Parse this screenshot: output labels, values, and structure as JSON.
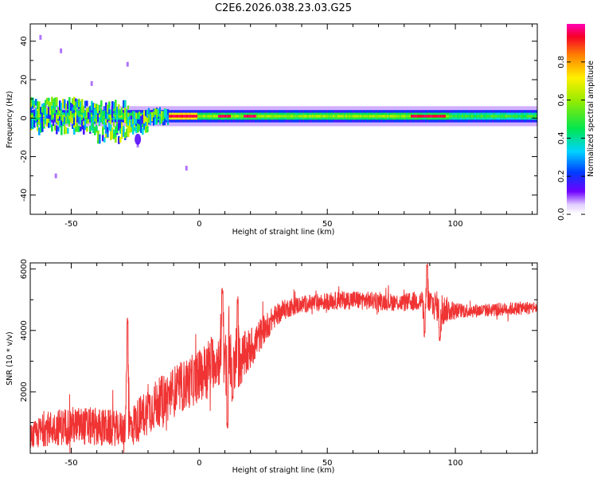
{
  "title": "C2E6.2026.038.23.03.G25",
  "colors": {
    "snr_line": "#f03333",
    "axis": "#000000",
    "background": "#ffffff"
  },
  "chart_data": [
    {
      "type": "heatmap",
      "xlabel": "Height of straight line (km)",
      "ylabel": "Frequency (Hz)",
      "xlim": [
        -66,
        132
      ],
      "ylim": [
        -50,
        49
      ],
      "xticks": [
        -50,
        0,
        50,
        100
      ],
      "yticks": [
        -40,
        -20,
        0,
        20,
        40
      ],
      "colorbar": {
        "label": "Normalized spectral amplitude",
        "range": [
          0,
          1
        ],
        "ticks": [
          "0.0",
          "0.2",
          "0.4",
          "0.6",
          "0.8"
        ],
        "colormap": "rainbow"
      },
      "band_center_hz": 1,
      "band_halfwidth_hz": 2,
      "ridge_segments": [
        {
          "x": [
            -66,
            -28
          ],
          "amplitude": 0.55,
          "freq_spread_hz": 8,
          "note": "noisy scattered energy"
        },
        {
          "x": [
            -28,
            -12
          ],
          "amplitude": 0.5,
          "freq_spread_hz": 3
        },
        {
          "x": [
            -12,
            -1
          ],
          "amplitude": 0.9
        },
        {
          "x": [
            -1,
            97
          ],
          "amplitude": 0.55
        },
        {
          "x": [
            97,
            132
          ],
          "amplitude": 0.45
        }
      ],
      "peak_segments_x": [
        [
          -12,
          -1
        ],
        [
          7,
          12
        ],
        [
          17,
          22
        ],
        [
          82,
          96
        ]
      ],
      "scatter_outliers": [
        {
          "x": -62,
          "f": 42
        },
        {
          "x": -54,
          "f": 35
        },
        {
          "x": -42,
          "f": 18
        },
        {
          "x": -28,
          "f": 28
        },
        {
          "x": -24,
          "f": -14
        },
        {
          "x": -5,
          "f": -26
        },
        {
          "x": -56,
          "f": -30
        }
      ]
    },
    {
      "type": "line",
      "xlabel": "Height of straight line (km)",
      "ylabel": "SNR (10 * v/v)",
      "xlim": [
        -66,
        132
      ],
      "ylim": [
        0,
        6200
      ],
      "xticks": [
        -50,
        0,
        50,
        100
      ],
      "yticks": [
        2000,
        4000,
        6000
      ],
      "series": [
        {
          "name": "SNR",
          "x": [
            -66,
            -60,
            -50,
            -40,
            -30,
            -26,
            -20,
            -10,
            0,
            5,
            10,
            15,
            20,
            25,
            30,
            35,
            40,
            50,
            60,
            70,
            80,
            88,
            90,
            95,
            100,
            110,
            120,
            132
          ],
          "y": [
            500,
            800,
            900,
            850,
            800,
            900,
            1400,
            2000,
            2500,
            3000,
            3100,
            2900,
            3400,
            4000,
            4500,
            4750,
            4850,
            4950,
            5000,
            4950,
            4900,
            5000,
            4900,
            4700,
            4650,
            4650,
            4700,
            4750
          ],
          "noise": [
            300,
            400,
            450,
            450,
            400,
            500,
            550,
            600,
            600,
            650,
            600,
            650,
            500,
            350,
            250,
            220,
            200,
            200,
            220,
            200,
            200,
            250,
            350,
            350,
            180,
            150,
            150,
            150
          ]
        }
      ],
      "annotations": [
        {
          "x": -28,
          "y": 4300,
          "type": "spike"
        },
        {
          "x": 9,
          "y": 5300,
          "type": "spike"
        },
        {
          "x": 11,
          "y": 5100,
          "type": "spike"
        },
        {
          "x": 15,
          "y": 5000,
          "type": "spike"
        },
        {
          "x": 89,
          "y": 6100,
          "type": "spike"
        },
        {
          "x": 11,
          "y": 900,
          "type": "dip"
        },
        {
          "x": 13,
          "y": 1800,
          "type": "dip"
        },
        {
          "x": 88,
          "y": 3900,
          "type": "dip"
        },
        {
          "x": 94,
          "y": 3700,
          "type": "dip"
        }
      ]
    }
  ]
}
